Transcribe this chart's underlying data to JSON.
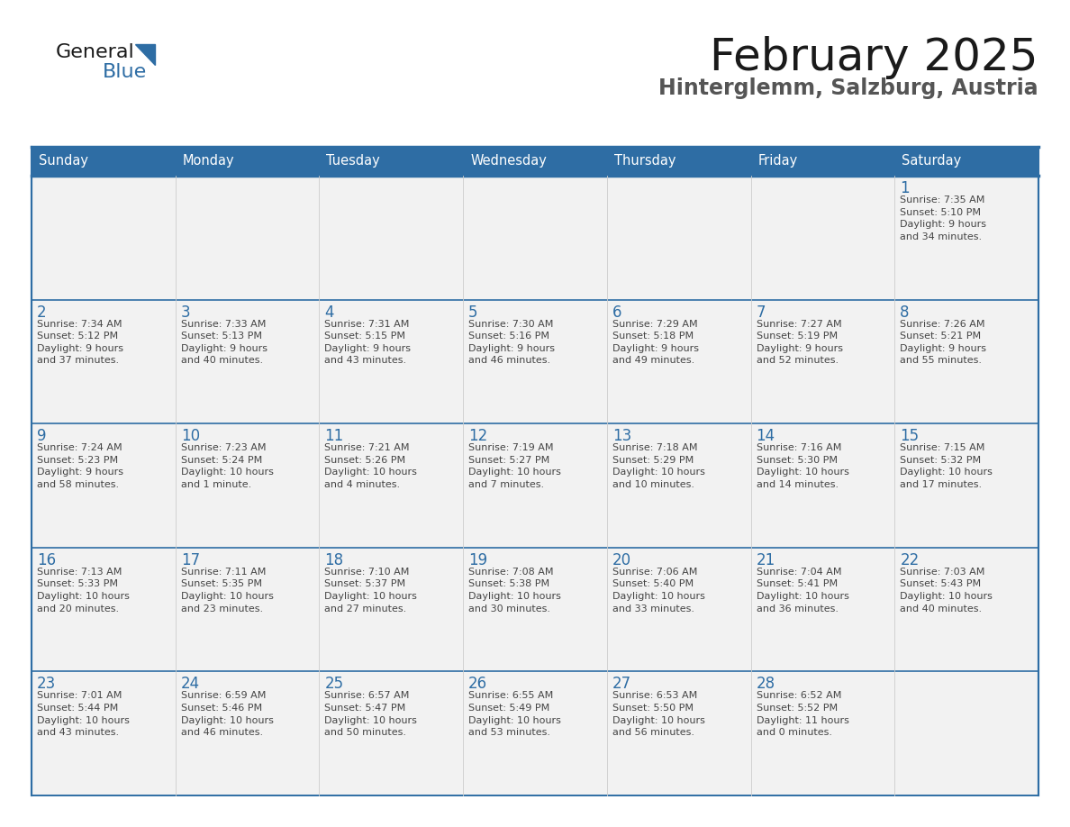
{
  "title": "February 2025",
  "subtitle": "Hinterglemm, Salzburg, Austria",
  "header_bg": "#2e6da4",
  "header_text_color": "#ffffff",
  "cell_bg": "#f2f2f2",
  "day_number_color": "#2e6da4",
  "info_text_color": "#444444",
  "row_line_color": "#2e6da4",
  "col_line_color": "#cccccc",
  "logo_text_color": "#1a1a1a",
  "logo_blue_color": "#2e6da4",
  "title_color": "#1a1a1a",
  "subtitle_color": "#555555",
  "days_of_week": [
    "Sunday",
    "Monday",
    "Tuesday",
    "Wednesday",
    "Thursday",
    "Friday",
    "Saturday"
  ],
  "weeks": [
    [
      {
        "day": null,
        "info": null
      },
      {
        "day": null,
        "info": null
      },
      {
        "day": null,
        "info": null
      },
      {
        "day": null,
        "info": null
      },
      {
        "day": null,
        "info": null
      },
      {
        "day": null,
        "info": null
      },
      {
        "day": "1",
        "info": "Sunrise: 7:35 AM\nSunset: 5:10 PM\nDaylight: 9 hours\nand 34 minutes."
      }
    ],
    [
      {
        "day": "2",
        "info": "Sunrise: 7:34 AM\nSunset: 5:12 PM\nDaylight: 9 hours\nand 37 minutes."
      },
      {
        "day": "3",
        "info": "Sunrise: 7:33 AM\nSunset: 5:13 PM\nDaylight: 9 hours\nand 40 minutes."
      },
      {
        "day": "4",
        "info": "Sunrise: 7:31 AM\nSunset: 5:15 PM\nDaylight: 9 hours\nand 43 minutes."
      },
      {
        "day": "5",
        "info": "Sunrise: 7:30 AM\nSunset: 5:16 PM\nDaylight: 9 hours\nand 46 minutes."
      },
      {
        "day": "6",
        "info": "Sunrise: 7:29 AM\nSunset: 5:18 PM\nDaylight: 9 hours\nand 49 minutes."
      },
      {
        "day": "7",
        "info": "Sunrise: 7:27 AM\nSunset: 5:19 PM\nDaylight: 9 hours\nand 52 minutes."
      },
      {
        "day": "8",
        "info": "Sunrise: 7:26 AM\nSunset: 5:21 PM\nDaylight: 9 hours\nand 55 minutes."
      }
    ],
    [
      {
        "day": "9",
        "info": "Sunrise: 7:24 AM\nSunset: 5:23 PM\nDaylight: 9 hours\nand 58 minutes."
      },
      {
        "day": "10",
        "info": "Sunrise: 7:23 AM\nSunset: 5:24 PM\nDaylight: 10 hours\nand 1 minute."
      },
      {
        "day": "11",
        "info": "Sunrise: 7:21 AM\nSunset: 5:26 PM\nDaylight: 10 hours\nand 4 minutes."
      },
      {
        "day": "12",
        "info": "Sunrise: 7:19 AM\nSunset: 5:27 PM\nDaylight: 10 hours\nand 7 minutes."
      },
      {
        "day": "13",
        "info": "Sunrise: 7:18 AM\nSunset: 5:29 PM\nDaylight: 10 hours\nand 10 minutes."
      },
      {
        "day": "14",
        "info": "Sunrise: 7:16 AM\nSunset: 5:30 PM\nDaylight: 10 hours\nand 14 minutes."
      },
      {
        "day": "15",
        "info": "Sunrise: 7:15 AM\nSunset: 5:32 PM\nDaylight: 10 hours\nand 17 minutes."
      }
    ],
    [
      {
        "day": "16",
        "info": "Sunrise: 7:13 AM\nSunset: 5:33 PM\nDaylight: 10 hours\nand 20 minutes."
      },
      {
        "day": "17",
        "info": "Sunrise: 7:11 AM\nSunset: 5:35 PM\nDaylight: 10 hours\nand 23 minutes."
      },
      {
        "day": "18",
        "info": "Sunrise: 7:10 AM\nSunset: 5:37 PM\nDaylight: 10 hours\nand 27 minutes."
      },
      {
        "day": "19",
        "info": "Sunrise: 7:08 AM\nSunset: 5:38 PM\nDaylight: 10 hours\nand 30 minutes."
      },
      {
        "day": "20",
        "info": "Sunrise: 7:06 AM\nSunset: 5:40 PM\nDaylight: 10 hours\nand 33 minutes."
      },
      {
        "day": "21",
        "info": "Sunrise: 7:04 AM\nSunset: 5:41 PM\nDaylight: 10 hours\nand 36 minutes."
      },
      {
        "day": "22",
        "info": "Sunrise: 7:03 AM\nSunset: 5:43 PM\nDaylight: 10 hours\nand 40 minutes."
      }
    ],
    [
      {
        "day": "23",
        "info": "Sunrise: 7:01 AM\nSunset: 5:44 PM\nDaylight: 10 hours\nand 43 minutes."
      },
      {
        "day": "24",
        "info": "Sunrise: 6:59 AM\nSunset: 5:46 PM\nDaylight: 10 hours\nand 46 minutes."
      },
      {
        "day": "25",
        "info": "Sunrise: 6:57 AM\nSunset: 5:47 PM\nDaylight: 10 hours\nand 50 minutes."
      },
      {
        "day": "26",
        "info": "Sunrise: 6:55 AM\nSunset: 5:49 PM\nDaylight: 10 hours\nand 53 minutes."
      },
      {
        "day": "27",
        "info": "Sunrise: 6:53 AM\nSunset: 5:50 PM\nDaylight: 10 hours\nand 56 minutes."
      },
      {
        "day": "28",
        "info": "Sunrise: 6:52 AM\nSunset: 5:52 PM\nDaylight: 11 hours\nand 0 minutes."
      },
      {
        "day": null,
        "info": null
      }
    ]
  ]
}
